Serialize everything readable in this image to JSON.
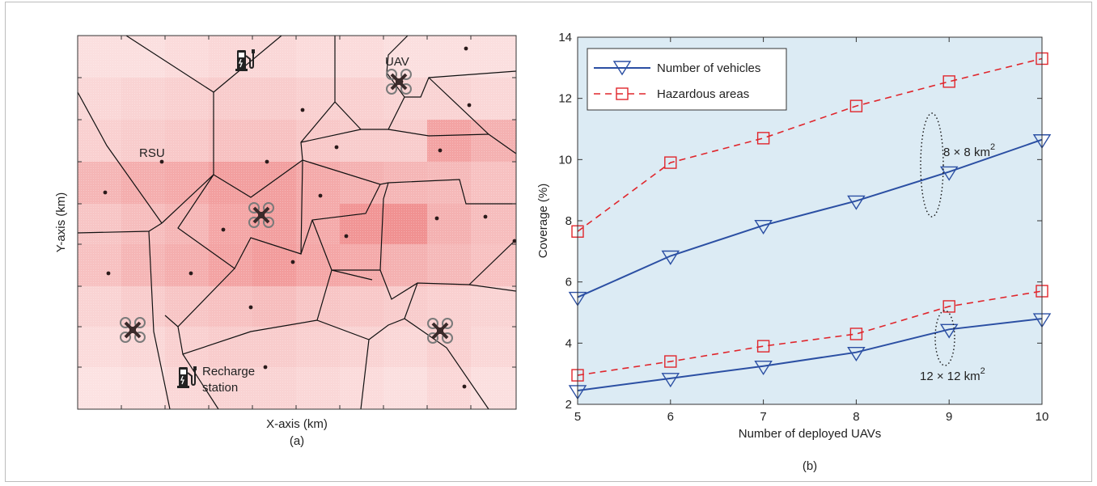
{
  "panel_a": {
    "xlabel": "X-axis (km)",
    "ylabel": "Y-axis (km)",
    "caption": "(a)",
    "labels": {
      "uav": "UAV",
      "rsu": "RSU",
      "recharge_line1": "Recharge",
      "recharge_line2": "station"
    },
    "colors": {
      "heat": "#e23030",
      "edges": "#111111",
      "background": "#fde9e9"
    }
  },
  "panel_b": {
    "caption": "(b)",
    "colors": {
      "vehicles": "#2b4fa3",
      "hazard": "#e0262c",
      "plot_bg": "#dcebf4"
    }
  },
  "chart_data": {
    "type": "line",
    "x": [
      5,
      6,
      7,
      8,
      9,
      10
    ],
    "xlim": [
      5,
      10
    ],
    "ylim": [
      2,
      14
    ],
    "xticks": [
      "5",
      "6",
      "7",
      "8",
      "9",
      "10"
    ],
    "yticks": [
      "2",
      "4",
      "6",
      "8",
      "10",
      "12",
      "14"
    ],
    "xlabel": "Number of deployed UAVs",
    "ylabel": "Coverage (%)",
    "grid": false,
    "legend_position": "top-left",
    "series": [
      {
        "name": "Number of vehicles",
        "group": "8 × 8 km",
        "values": [
          5.5,
          6.85,
          7.85,
          8.65,
          9.6,
          10.65
        ]
      },
      {
        "name": "Hazardous areas",
        "group": "8 × 8 km",
        "values": [
          7.65,
          9.9,
          10.7,
          11.75,
          12.55,
          13.3
        ]
      },
      {
        "name": "Number of vehicles",
        "group": "12 × 12 km",
        "values": [
          2.45,
          2.85,
          3.25,
          3.7,
          4.45,
          4.8
        ]
      },
      {
        "name": "Hazardous areas",
        "group": "12 × 12 km",
        "values": [
          2.95,
          3.4,
          3.9,
          4.3,
          5.2,
          5.7
        ]
      }
    ],
    "legend": [
      "Number of vehicles",
      "Hazardous areas"
    ],
    "annotations": [
      {
        "text_main": "8 × 8 km",
        "superscript": "2"
      },
      {
        "text_main": "12 × 12 km",
        "superscript": "2"
      }
    ]
  }
}
